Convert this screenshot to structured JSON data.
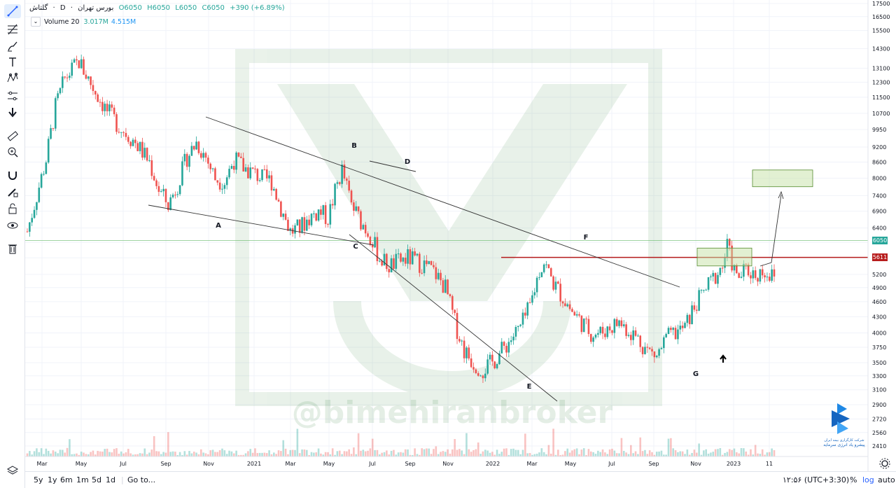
{
  "legend": {
    "symbol": "گلتاش",
    "interval": "D",
    "exchange": "بورس تهران",
    "open": "O6050",
    "high": "H6050",
    "low": "L6050",
    "close": "C6050",
    "change": "+390 (+6.89%)"
  },
  "volume_legend": {
    "label": "Volume 20",
    "value1": "3.017M",
    "value2": "4.515M"
  },
  "watermark": "@bimehiranbroker",
  "logo_text_line1": "شرکت کارگزاری بیمه ایران",
  "logo_text_line2": "پیشرو یاد انرژی سرمایه",
  "price_tags": {
    "last": "6050",
    "line": "5611"
  },
  "timeframes": [
    "5y",
    "1y",
    "6m",
    "1m",
    "5d",
    "1d"
  ],
  "goto_label": "Go to...",
  "clock": "۱۲:۵۶ (UTC+3:30)",
  "bottom_right": {
    "percent": "%",
    "log": "log",
    "auto": "auto"
  },
  "colors": {
    "up": "#26a69a",
    "down": "#ef5350",
    "resistance": "#b71c1c",
    "last_price": "#4caf50",
    "target_box": "#c5e1a5"
  },
  "chart_data": {
    "type": "candlestick",
    "scale": "log",
    "y_ticks": [
      2410,
      2560,
      2720,
      2900,
      3100,
      3300,
      3500,
      3750,
      4000,
      4300,
      4600,
      4900,
      5200,
      5600,
      6000,
      6400,
      6900,
      7400,
      8000,
      8600,
      9200,
      9950,
      10700,
      11500,
      12300,
      13100,
      14300,
      15500,
      16500,
      17500
    ],
    "x_ticks": [
      "Mar",
      "May",
      "Jul",
      "Sep",
      "Nov",
      "2021",
      "Mar",
      "May",
      "Jul",
      "Sep",
      "Nov",
      "2022",
      "Mar",
      "May",
      "Jul",
      "Sep",
      "Nov",
      "2023",
      "11"
    ],
    "pattern_labels": [
      "A",
      "B",
      "C",
      "D",
      "E",
      "F",
      "G"
    ],
    "resistance_level": 5611,
    "last_price": 6050,
    "trend_path": [
      [
        0,
        6300
      ],
      [
        8,
        8700
      ],
      [
        12,
        11000
      ],
      [
        16,
        12500
      ],
      [
        22,
        13500
      ],
      [
        28,
        12000
      ],
      [
        34,
        10800
      ],
      [
        40,
        10000
      ],
      [
        46,
        9400
      ],
      [
        52,
        8600
      ],
      [
        56,
        7600
      ],
      [
        60,
        7100
      ],
      [
        64,
        7800
      ],
      [
        68,
        8800
      ],
      [
        72,
        9400
      ],
      [
        76,
        8800
      ],
      [
        80,
        8000
      ],
      [
        84,
        7900
      ],
      [
        88,
        8700
      ],
      [
        92,
        8400
      ],
      [
        96,
        8200
      ],
      [
        100,
        8000
      ],
      [
        104,
        7900
      ],
      [
        108,
        7000
      ],
      [
        112,
        6300
      ],
      [
        116,
        6400
      ],
      [
        120,
        6700
      ],
      [
        124,
        6900
      ],
      [
        128,
        6700
      ],
      [
        132,
        7800
      ],
      [
        134,
        8300
      ],
      [
        138,
        7100
      ],
      [
        142,
        6600
      ],
      [
        146,
        6200
      ],
      [
        150,
        5600
      ],
      [
        154,
        5400
      ],
      [
        158,
        5500
      ],
      [
        162,
        5600
      ],
      [
        166,
        5500
      ],
      [
        170,
        5400
      ],
      [
        174,
        5200
      ],
      [
        178,
        4900
      ],
      [
        182,
        4200
      ],
      [
        186,
        3700
      ],
      [
        190,
        3500
      ],
      [
        194,
        3400
      ],
      [
        198,
        3500
      ],
      [
        202,
        3700
      ],
      [
        206,
        3900
      ],
      [
        210,
        4100
      ],
      [
        214,
        4500
      ],
      [
        218,
        5300
      ],
      [
        220,
        5500
      ],
      [
        224,
        5000
      ],
      [
        228,
        4700
      ],
      [
        232,
        4400
      ],
      [
        236,
        4200
      ],
      [
        240,
        4000
      ],
      [
        244,
        4000
      ],
      [
        248,
        4100
      ],
      [
        252,
        4200
      ],
      [
        256,
        4050
      ],
      [
        260,
        3900
      ],
      [
        264,
        3700
      ],
      [
        268,
        3600
      ],
      [
        272,
        3900
      ],
      [
        276,
        4000
      ],
      [
        280,
        4100
      ],
      [
        284,
        4500
      ],
      [
        288,
        4800
      ],
      [
        292,
        5100
      ],
      [
        296,
        5400
      ],
      [
        298,
        5900
      ],
      [
        302,
        5100
      ],
      [
        306,
        5300
      ],
      [
        310,
        5200
      ],
      [
        314,
        5300
      ],
      [
        318,
        5100
      ]
    ],
    "target_zone": {
      "y_low": 7700,
      "y_high": 8300
    },
    "breakout_zone": {
      "y_low": 5400,
      "y_high": 5850
    }
  }
}
